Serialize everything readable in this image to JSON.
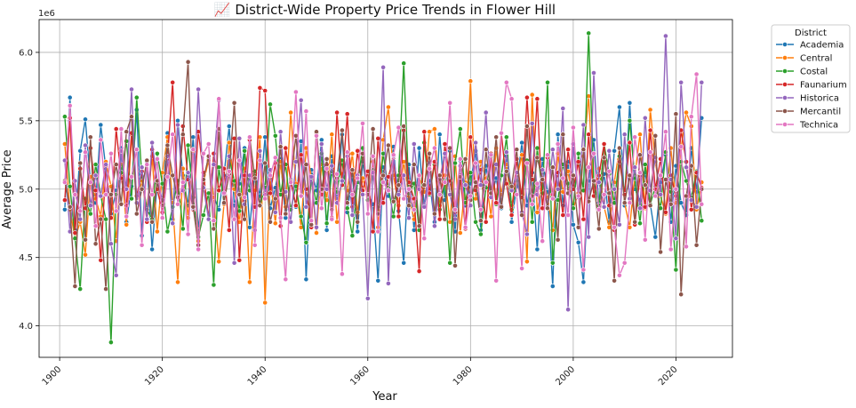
{
  "chart_data": {
    "type": "line",
    "title": "📈 District-Wide Property Price Trends in Flower Hill",
    "xlabel": "Year",
    "ylabel": "Average Price",
    "y_offset_label": "1e6",
    "xlim": [
      1896,
      2031
    ],
    "ylim": [
      3770000,
      6240000
    ],
    "x_ticks": [
      1900,
      1920,
      1940,
      1960,
      1980,
      2000,
      2020
    ],
    "y_ticks": [
      4000000,
      4500000,
      5000000,
      5500000,
      6000000
    ],
    "y_tick_labels": [
      "4.0",
      "4.5",
      "5.0",
      "5.5",
      "6.0"
    ],
    "grid": true,
    "legend_title": "District",
    "legend_location": "outside upper right",
    "x": [
      1901,
      1902,
      1903,
      1904,
      1905,
      1906,
      1907,
      1908,
      1909,
      1910,
      1911,
      1912,
      1913,
      1914,
      1915,
      1916,
      1917,
      1918,
      1919,
      1920,
      1921,
      1922,
      1923,
      1924,
      1925,
      1926,
      1927,
      1928,
      1929,
      1930,
      1931,
      1932,
      1933,
      1934,
      1935,
      1936,
      1937,
      1938,
      1939,
      1940,
      1941,
      1942,
      1943,
      1944,
      1945,
      1946,
      1947,
      1948,
      1949,
      1950,
      1951,
      1952,
      1953,
      1954,
      1955,
      1956,
      1957,
      1958,
      1959,
      1960,
      1961,
      1962,
      1963,
      1964,
      1965,
      1966,
      1967,
      1968,
      1969,
      1970,
      1971,
      1972,
      1973,
      1974,
      1975,
      1976,
      1977,
      1978,
      1979,
      1980,
      1981,
      1982,
      1983,
      1984,
      1985,
      1986,
      1987,
      1988,
      1989,
      1990,
      1991,
      1992,
      1993,
      1994,
      1995,
      1996,
      1997,
      1998,
      1999,
      2000,
      2001,
      2002,
      2003,
      2004,
      2005,
      2006,
      2007,
      2008,
      2009,
      2010,
      2011,
      2012,
      2013,
      2014,
      2015,
      2016,
      2017,
      2018,
      2019,
      2020,
      2021,
      2022,
      2023,
      2024,
      2025
    ],
    "series": [
      {
        "name": "Academia",
        "color": "#1f77b4",
        "values": [
          4850000,
          5670000,
          4700000,
          5280000,
          5510000,
          5050000,
          4900000,
          5470000,
          5150000,
          4820000,
          4990000,
          5300000,
          4760000,
          5020000,
          5580000,
          4660000,
          5200000,
          4560000,
          5050000,
          4900000,
          5410000,
          4780000,
          5500000,
          5100000,
          4880000,
          5380000,
          4700000,
          5060000,
          5220000,
          4950000,
          4850000,
          5100000,
          5460000,
          4880000,
          5040000,
          5300000,
          4720000,
          5120000,
          4950000,
          5380000,
          4860000,
          5010000,
          5220000,
          4790000,
          5070000,
          4870000,
          5350000,
          4340000,
          5140000,
          4990000,
          5360000,
          4700000,
          5240000,
          4930000,
          5400000,
          4830000,
          5100000,
          4690000,
          5200000,
          4960000,
          4890000,
          4330000,
          5160000,
          4950000,
          5310000,
          4840000,
          4460000,
          5180000,
          4700000,
          5300000,
          4880000,
          5060000,
          4760000,
          5400000,
          4920000,
          5280000,
          4690000,
          5210000,
          4880000,
          5040000,
          5280000,
          4700000,
          5170000,
          4940000,
          5080000,
          4860000,
          5240000,
          4760000,
          5020000,
          5340000,
          4880000,
          5120000,
          4560000,
          5220000,
          4980000,
          4290000,
          5400000,
          4880000,
          5200000,
          4740000,
          4610000,
          4320000,
          5060000,
          5360000,
          4900000,
          5110000,
          4760000,
          5280000,
          5600000,
          4880000,
          5630000,
          5000000,
          4920000,
          5120000,
          4890000,
          4650000,
          5050000,
          5250000,
          4760000,
          5170000,
          4900000,
          4810000,
          5300000,
          4980000,
          5520000
        ]
      },
      {
        "name": "Central",
        "color": "#ff7f0e",
        "values": [
          5330000,
          4850000,
          4640000,
          4760000,
          4520000,
          5090000,
          4930000,
          4800000,
          5200000,
          5020000,
          4620000,
          5180000,
          4740000,
          5400000,
          4900000,
          5060000,
          4860000,
          5240000,
          4690000,
          5120000,
          5380000,
          4900000,
          4320000,
          5150000,
          4790000,
          5280000,
          4620000,
          5050000,
          5210000,
          4940000,
          4470000,
          4890000,
          5340000,
          5000000,
          4760000,
          5150000,
          4320000,
          4990000,
          5380000,
          4170000,
          5080000,
          4750000,
          5200000,
          4870000,
          5560000,
          5040000,
          4720000,
          5300000,
          5090000,
          4680000,
          5180000,
          4920000,
          5400000,
          4760000,
          5110000,
          4990000,
          5260000,
          4830000,
          5080000,
          4950000,
          5200000,
          4720000,
          5360000,
          5600000,
          5100000,
          4880000,
          5200000,
          4950000,
          4780000,
          5090000,
          4980000,
          5420000,
          5440000,
          4880000,
          5100000,
          4760000,
          5240000,
          4680000,
          5050000,
          5790000,
          4930000,
          5200000,
          5080000,
          4800000,
          5300000,
          4960000,
          5180000,
          4880000,
          5070000,
          5250000,
          4470000,
          5690000,
          4830000,
          5080000,
          4940000,
          4700000,
          5260000,
          4980000,
          5130000,
          4860000,
          4970000,
          5240000,
          5680000,
          4950000,
          5150000,
          4870000,
          4720000,
          5050000,
          5300000,
          4900000,
          4720000,
          5100000,
          5400000,
          4860000,
          5580000,
          5200000,
          4950000,
          4820000,
          5300000,
          4900000,
          5300000,
          5560000,
          5460000,
          4850000,
          5050000
        ]
      },
      {
        "name": "Costal",
        "color": "#2ca02c",
        "values": [
          5530000,
          5020000,
          4640000,
          4270000,
          4930000,
          4820000,
          5180000,
          4950000,
          4780000,
          3880000,
          4960000,
          5120000,
          5350000,
          4930000,
          5670000,
          5090000,
          4850000,
          4780000,
          5260000,
          5040000,
          4690000,
          4870000,
          5060000,
          4710000,
          5320000,
          4940000,
          4650000,
          4810000,
          4970000,
          4300000,
          5160000,
          4900000,
          5230000,
          5060000,
          4840000,
          5280000,
          4990000,
          5130000,
          4880000,
          5010000,
          5620000,
          5390000,
          4960000,
          5180000,
          4850000,
          5020000,
          4800000,
          4610000,
          5080000,
          4900000,
          5260000,
          4750000,
          5130000,
          4980000,
          5210000,
          4860000,
          4660000,
          5050000,
          5300000,
          4920000,
          5140000,
          4880000,
          5260000,
          5010000,
          4800000,
          5100000,
          5920000,
          4970000,
          5040000,
          4700000,
          5340000,
          4960000,
          5180000,
          4850000,
          5060000,
          4460000,
          5190000,
          5440000,
          4900000,
          5120000,
          4760000,
          4670000,
          5010000,
          5240000,
          4890000,
          5100000,
          5380000,
          4850000,
          5060000,
          4940000,
          5210000,
          4760000,
          5300000,
          4970000,
          5780000,
          4460000,
          4920000,
          5180000,
          5040000,
          4860000,
          5260000,
          4990000,
          6140000,
          5060000,
          4880000,
          5330000,
          5110000,
          4900000,
          5240000,
          4960000,
          5500000,
          5080000,
          4750000,
          5180000,
          4890000,
          5020000,
          4860000,
          5270000,
          4980000,
          4410000,
          5200000,
          5060000,
          4940000,
          5130000,
          4770000
        ]
      },
      {
        "name": "Faunarium",
        "color": "#d62728",
        "values": [
          4920000,
          5520000,
          4680000,
          5150000,
          4860000,
          5300000,
          4990000,
          4480000,
          5170000,
          4790000,
          5440000,
          5080000,
          4880000,
          5410000,
          4950000,
          5130000,
          4760000,
          5290000,
          5000000,
          4830000,
          5220000,
          5780000,
          4940000,
          5460000,
          5070000,
          4850000,
          5420000,
          5120000,
          4780000,
          5260000,
          4990000,
          5150000,
          4700000,
          5370000,
          4480000,
          5100000,
          5360000,
          4870000,
          5740000,
          5720000,
          4970000,
          5190000,
          4730000,
          5300000,
          5060000,
          4880000,
          5250000,
          5000000,
          4720000,
          5410000,
          4960000,
          5180000,
          4790000,
          5560000,
          5030000,
          5550000,
          4870000,
          5280000,
          4990000,
          5130000,
          4690000,
          5370000,
          4900000,
          5090000,
          5230000,
          4800000,
          5430000,
          5050000,
          4930000,
          4400000,
          5420000,
          4970000,
          5200000,
          4780000,
          5330000,
          5060000,
          4830000,
          5100000,
          4710000,
          5380000,
          4990000,
          5140000,
          4760000,
          5260000,
          4900000,
          5410000,
          5040000,
          4810000,
          5220000,
          4940000,
          5670000,
          5070000,
          5660000,
          4860000,
          5230000,
          4960000,
          5120000,
          4810000,
          5290000,
          5000000,
          5200000,
          4780000,
          5400000,
          4950000,
          5100000,
          5330000,
          4880000,
          4700000,
          5200000,
          4960000,
          5340000,
          4740000,
          5100000,
          4870000,
          5430000,
          5000000,
          5220000,
          4830000,
          5100000,
          4950000,
          5430000,
          5200000,
          4850000,
          5120000,
          5010000
        ]
      },
      {
        "name": "Historica",
        "color": "#9467bd",
        "values": [
          5210000,
          4690000,
          5060000,
          4780000,
          5320000,
          4880000,
          5100000,
          4950000,
          5180000,
          4600000,
          4370000,
          5280000,
          5000000,
          5730000,
          4900000,
          5160000,
          4780000,
          5340000,
          5060000,
          4920000,
          5240000,
          4750000,
          5470000,
          4990000,
          5120000,
          4860000,
          5730000,
          5010000,
          4780000,
          5180000,
          5650000,
          4960000,
          5240000,
          4460000,
          5370000,
          4890000,
          5100000,
          4700000,
          5280000,
          4960000,
          5140000,
          4830000,
          5420000,
          4980000,
          4760000,
          5200000,
          5650000,
          4870000,
          5090000,
          4720000,
          5330000,
          5000000,
          5170000,
          4900000,
          5060000,
          5240000,
          4810000,
          5100000,
          4960000,
          4200000,
          5120000,
          4870000,
          5890000,
          4310000,
          5240000,
          4960000,
          5100000,
          4790000,
          5330000,
          5000000,
          4870000,
          5190000,
          4730000,
          5070000,
          5260000,
          4960000,
          4780000,
          5170000,
          5030000,
          4880000,
          5340000,
          5030000,
          5560000,
          4940000,
          5180000,
          4880000,
          5270000,
          4990000,
          5120000,
          4830000,
          4670000,
          5480000,
          4960000,
          5140000,
          4870000,
          5290000,
          5000000,
          5590000,
          4120000,
          5330000,
          4940000,
          5470000,
          4650000,
          5850000,
          5050000,
          4870000,
          5280000,
          5000000,
          4740000,
          5400000,
          4930000,
          5160000,
          4860000,
          5520000,
          4990000,
          5230000,
          4960000,
          6120000,
          5070000,
          4640000,
          5780000,
          5160000,
          4920000,
          4870000,
          5780000
        ]
      },
      {
        "name": "Mercantil",
        "color": "#8c564b",
        "values": [
          5060000,
          4870000,
          4290000,
          5190000,
          4630000,
          5380000,
          4600000,
          4780000,
          4270000,
          4960000,
          5180000,
          4890000,
          5420000,
          5530000,
          4820000,
          5000000,
          5210000,
          4760000,
          5060000,
          4880000,
          5320000,
          5100000,
          4940000,
          5400000,
          5930000,
          4870000,
          4590000,
          5070000,
          5240000,
          4710000,
          5440000,
          4900000,
          5110000,
          5630000,
          4960000,
          4780000,
          5380000,
          5080000,
          4880000,
          5190000,
          4760000,
          4930000,
          5310000,
          4820000,
          5060000,
          5390000,
          4950000,
          5180000,
          4740000,
          5420000,
          5000000,
          5220000,
          4850000,
          5080000,
          5430000,
          4900000,
          5140000,
          4760000,
          5260000,
          4960000,
          5440000,
          4820000,
          5100000,
          5320000,
          4910000,
          5030000,
          5460000,
          4880000,
          5180000,
          4730000,
          5030000,
          5260000,
          4820000,
          5100000,
          4780000,
          5300000,
          4440000,
          5090000,
          5220000,
          4920000,
          5050000,
          4770000,
          5290000,
          4970000,
          5380000,
          4870000,
          5130000,
          5020000,
          5290000,
          4810000,
          5460000,
          4950000,
          5230000,
          5070000,
          4860000,
          5160000,
          4630000,
          5400000,
          4970000,
          5100000,
          4720000,
          5290000,
          4910000,
          5060000,
          4710000,
          5230000,
          4970000,
          4330000,
          5300000,
          4900000,
          5100000,
          4760000,
          5250000,
          5030000,
          4880000,
          5390000,
          4540000,
          5070000,
          4890000,
          5550000,
          4230000,
          4950000,
          5170000,
          4590000,
          5000000
        ]
      },
      {
        "name": "Technica",
        "color": "#e377c2",
        "values": [
          5050000,
          5610000,
          4960000,
          4840000,
          5270000,
          5050000,
          4730000,
          5360000,
          4960000,
          5260000,
          4840000,
          5440000,
          4800000,
          5090000,
          5290000,
          4590000,
          5180000,
          4960000,
          5220000,
          4790000,
          5090000,
          5400000,
          4890000,
          5050000,
          4670000,
          5290000,
          4560000,
          5260000,
          5330000,
          4770000,
          5660000,
          4970000,
          5130000,
          4780000,
          5210000,
          4940000,
          5380000,
          4590000,
          5210000,
          4930000,
          5100000,
          5230000,
          4790000,
          4340000,
          5050000,
          5710000,
          4950000,
          5570000,
          4770000,
          5390000,
          4860000,
          5150000,
          4780000,
          5110000,
          4380000,
          5270000,
          4960000,
          5080000,
          5480000,
          4820000,
          5240000,
          4690000,
          5050000,
          4990000,
          5250000,
          5450000,
          4930000,
          5000000,
          4850000,
          5100000,
          4640000,
          5150000,
          5300000,
          4960000,
          5050000,
          5630000,
          4850000,
          5220000,
          4720000,
          4950000,
          5190000,
          4850000,
          5050000,
          5250000,
          4330000,
          5410000,
          5780000,
          5660000,
          4960000,
          4420000,
          5190000,
          4890000,
          5040000,
          4620000,
          5250000,
          4930000,
          5330000,
          5080000,
          4810000,
          5450000,
          4950000,
          4410000,
          5160000,
          5260000,
          4850000,
          4960000,
          5130000,
          4720000,
          4370000,
          4460000,
          4900000,
          5380000,
          5120000,
          4630000,
          5270000,
          4950000,
          5100000,
          5420000,
          4560000,
          5000000,
          5310000,
          4580000,
          5530000,
          5840000,
          4890000
        ]
      }
    ]
  }
}
